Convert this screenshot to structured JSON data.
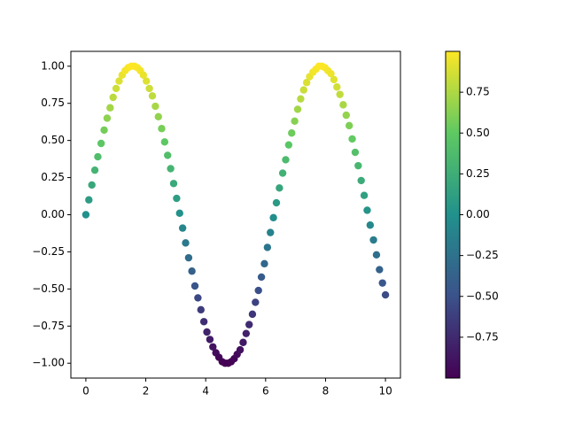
{
  "chart_data": {
    "type": "scatter",
    "x": [
      0,
      0.1,
      0.2,
      0.3,
      0.4,
      0.51,
      0.61,
      0.71,
      0.81,
      0.91,
      1.01,
      1.11,
      1.21,
      1.31,
      1.41,
      1.52,
      1.62,
      1.72,
      1.82,
      1.92,
      2.02,
      2.12,
      2.22,
      2.32,
      2.42,
      2.53,
      2.63,
      2.73,
      2.83,
      2.93,
      3.03,
      3.13,
      3.23,
      3.33,
      3.43,
      3.54,
      3.64,
      3.74,
      3.84,
      3.94,
      4.04,
      4.14,
      4.24,
      4.34,
      4.44,
      4.55,
      4.65,
      4.75,
      4.85,
      4.95,
      5.05,
      5.15,
      5.25,
      5.35,
      5.45,
      5.56,
      5.66,
      5.76,
      5.86,
      5.96,
      6.06,
      6.16,
      6.26,
      6.36,
      6.46,
      6.57,
      6.67,
      6.77,
      6.87,
      6.97,
      7.07,
      7.17,
      7.27,
      7.37,
      7.47,
      7.58,
      7.68,
      7.78,
      7.88,
      7.98,
      8.08,
      8.18,
      8.28,
      8.38,
      8.48,
      8.59,
      8.69,
      8.79,
      8.89,
      8.99,
      9.09,
      9.19,
      9.29,
      9.39,
      9.49,
      9.6,
      9.7,
      9.8,
      9.9,
      10
    ],
    "values": [
      0,
      0.1,
      0.2,
      0.3,
      0.39,
      0.48,
      0.57,
      0.65,
      0.72,
      0.79,
      0.85,
      0.9,
      0.94,
      0.97,
      0.99,
      1.0,
      1.0,
      0.99,
      0.97,
      0.94,
      0.9,
      0.85,
      0.8,
      0.73,
      0.66,
      0.58,
      0.49,
      0.4,
      0.31,
      0.21,
      0.11,
      0.01,
      -0.09,
      -0.19,
      -0.29,
      -0.38,
      -0.48,
      -0.56,
      -0.64,
      -0.72,
      -0.79,
      -0.84,
      -0.89,
      -0.93,
      -0.96,
      -0.99,
      -1.0,
      -1.0,
      -0.99,
      -0.97,
      -0.94,
      -0.91,
      -0.86,
      -0.8,
      -0.74,
      -0.67,
      -0.59,
      -0.51,
      -0.42,
      -0.33,
      -0.22,
      -0.12,
      -0.02,
      0.08,
      0.18,
      0.28,
      0.37,
      0.47,
      0.55,
      0.63,
      0.71,
      0.78,
      0.84,
      0.89,
      0.93,
      0.96,
      0.98,
      1.0,
      1.0,
      0.99,
      0.97,
      0.95,
      0.91,
      0.86,
      0.81,
      0.74,
      0.67,
      0.6,
      0.51,
      0.42,
      0.33,
      0.23,
      0.13,
      0.03,
      -0.07,
      -0.17,
      -0.27,
      -0.37,
      -0.46,
      -0.54
    ],
    "xlim": [
      -0.5,
      10.5
    ],
    "xticks": [
      0,
      2,
      4,
      6,
      8,
      10
    ],
    "ylim": [
      -1.1,
      1.1
    ],
    "yticks": [
      {
        "value": -1,
        "label": "−1.00"
      },
      {
        "value": -0.75,
        "label": "−0.75"
      },
      {
        "value": -0.5,
        "label": "−0.50"
      },
      {
        "value": -0.25,
        "label": "−0.25"
      },
      {
        "value": 0,
        "label": "0.00"
      },
      {
        "value": 0.25,
        "label": "0.25"
      },
      {
        "value": 0.5,
        "label": "0.50"
      },
      {
        "value": 0.75,
        "label": "0.75"
      },
      {
        "value": 1,
        "label": "1.00"
      }
    ],
    "colormap": [
      "#440154",
      "#3b528b",
      "#21918c",
      "#5ec962",
      "#fde725"
    ],
    "colorbar_lim": [
      -1,
      1
    ],
    "colorbar_ticks": [
      {
        "value": -0.75,
        "label": "−0.75"
      },
      {
        "value": -0.5,
        "label": "−0.50"
      },
      {
        "value": -0.25,
        "label": "−0.25"
      },
      {
        "value": 0,
        "label": "0.00"
      },
      {
        "value": 0.25,
        "label": "0.25"
      },
      {
        "value": 0.5,
        "label": "0.50"
      },
      {
        "value": 0.75,
        "label": "0.75"
      }
    ]
  }
}
